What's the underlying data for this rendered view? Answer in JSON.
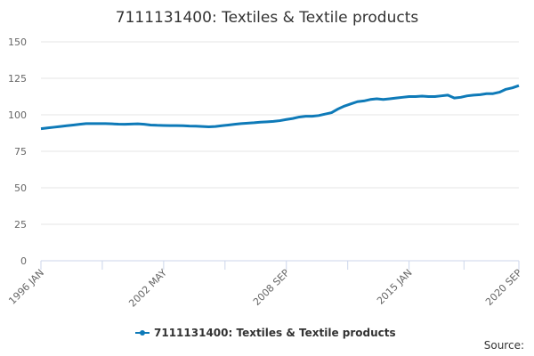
{
  "chart_data": {
    "type": "line",
    "title": "7111131400: Textiles & Textile products",
    "categories": [
      "1996 JAN",
      null,
      null,
      null,
      null,
      null,
      null,
      null,
      null,
      null,
      null,
      null,
      null,
      null,
      null,
      null,
      null,
      null,
      null,
      "2002 MAY",
      null,
      null,
      null,
      null,
      null,
      null,
      null,
      null,
      null,
      null,
      null,
      null,
      null,
      null,
      null,
      null,
      null,
      null,
      "2008 SEP",
      null,
      null,
      null,
      null,
      null,
      null,
      null,
      null,
      null,
      null,
      null,
      null,
      null,
      null,
      null,
      null,
      null,
      null,
      "2015 JAN",
      null,
      null,
      null,
      null,
      null,
      null,
      null,
      null,
      null,
      null,
      null,
      null,
      null,
      null,
      null,
      null,
      "2020 SEP"
    ],
    "series": [
      {
        "name": "7111131400: Textiles & Textile products",
        "color": "#0e7ab8",
        "values": [
          90.5,
          91,
          91.5,
          92,
          92.5,
          93,
          93.5,
          94,
          94,
          94,
          94,
          93.8,
          93.6,
          93.5,
          93.7,
          93.8,
          93.5,
          93,
          92.8,
          92.7,
          92.6,
          92.6,
          92.5,
          92.3,
          92.2,
          92,
          91.8,
          92,
          92.5,
          93,
          93.5,
          94,
          94.3,
          94.6,
          95,
          95.2,
          95.5,
          96,
          96.8,
          97.5,
          98.5,
          99,
          99,
          99.5,
          100.5,
          101.5,
          104,
          106,
          107.5,
          109,
          109.5,
          110.5,
          111,
          110.5,
          111,
          111.5,
          112,
          112.5,
          112.5,
          112.8,
          112.5,
          112.5,
          113,
          113.5,
          111.5,
          112,
          113,
          113.5,
          113.8,
          114.5,
          114.5,
          115.5,
          117.5,
          118.5,
          120
        ]
      }
    ],
    "ylim": [
      0,
      150
    ],
    "yticks": [
      0,
      25,
      50,
      75,
      100,
      125,
      150
    ],
    "grid": true,
    "legend": "bottom",
    "source": "Source:"
  }
}
